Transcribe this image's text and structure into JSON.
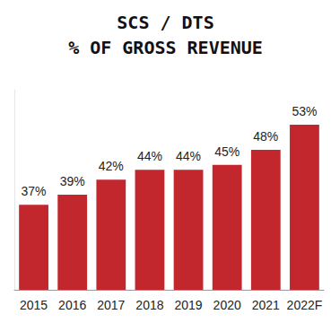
{
  "chart_data": {
    "type": "bar",
    "title": "SCS / DTS",
    "subtitle": "% OF GROSS REVENUE",
    "categories": [
      "2015",
      "2016",
      "2017",
      "2018",
      "2019",
      "2020",
      "2021",
      "2022F"
    ],
    "values": [
      37,
      39,
      42,
      44,
      44,
      45,
      48,
      53
    ],
    "value_labels": [
      "37%",
      "39%",
      "42%",
      "44%",
      "44%",
      "45%",
      "48%",
      "53%"
    ],
    "color": "#c1272d",
    "ylim": [
      20,
      60
    ],
    "grid": false,
    "data_labels": true,
    "tick_labels": "x"
  }
}
